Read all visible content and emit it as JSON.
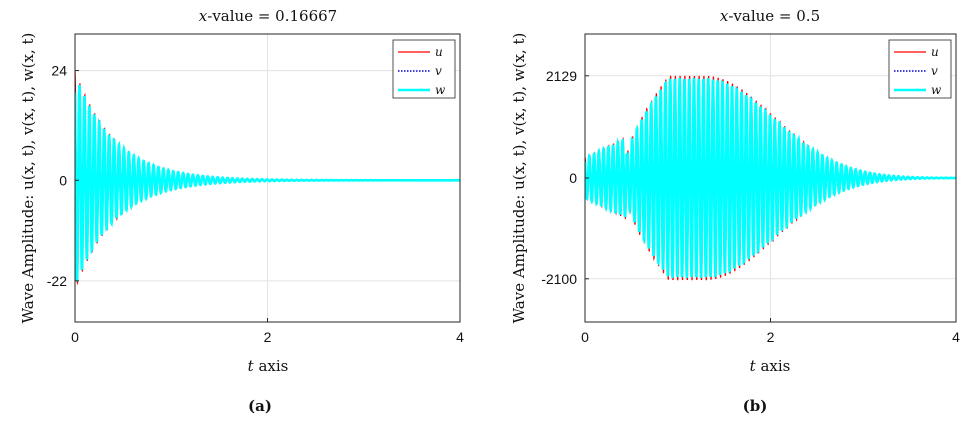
{
  "colors": {
    "u": "#ff0000",
    "v": "#0000cc",
    "w": "#00ffff",
    "grid": "#e3e3e3"
  },
  "chart_data": [
    {
      "type": "line",
      "panel_label": "(a)",
      "title_prefix": "x",
      "title_rest": "-value = 0.16667",
      "ylabel": "Wave Amplitude: u(x, t), v(x, t), w(x, t)",
      "xlabel_var": "t",
      "xlabel_rest": " axis",
      "xlim": [
        0,
        4
      ],
      "ylim": [
        -31,
        32
      ],
      "xticks": [
        0,
        2,
        4
      ],
      "xtick_labels": [
        "0",
        "2",
        "4"
      ],
      "yticks": [
        -22,
        0,
        24
      ],
      "ytick_labels": [
        "-22",
        "0",
        "24"
      ],
      "grid": true,
      "legend_position": "top-right",
      "legend": [
        "u",
        "v",
        "w"
      ],
      "envelope": {
        "shape": "decay",
        "peak": 24,
        "decay_rate": 2.4,
        "cycles_per_unit": 19.5
      },
      "series": [
        {
          "name": "u",
          "style": "solid-thin"
        },
        {
          "name": "v",
          "style": "dotted"
        },
        {
          "name": "w",
          "style": "solid-thick"
        }
      ]
    },
    {
      "type": "line",
      "panel_label": "(b)",
      "title_prefix": "x",
      "title_rest": "-value = 0.5",
      "ylabel": "Wave Amplitude: u(x, t), v(x, t), w(x, t)",
      "xlabel_var": "t",
      "xlabel_rest": " axis",
      "xlim": [
        0,
        4
      ],
      "ylim": [
        -3000,
        3000
      ],
      "xticks": [
        0,
        2,
        4
      ],
      "xtick_labels": [
        "0",
        "2",
        "4"
      ],
      "yticks": [
        -2100,
        0,
        2129
      ],
      "ytick_labels": [
        "-2100",
        "0",
        "2129"
      ],
      "grid": true,
      "legend_position": "top-right",
      "legend": [
        "u",
        "v",
        "w"
      ],
      "envelope": {
        "shape": "grow-decay",
        "peak": 2129,
        "peak_t": 1.2,
        "cycles_per_unit": 19.5
      },
      "series": [
        {
          "name": "u",
          "style": "solid-thin"
        },
        {
          "name": "v",
          "style": "dotted"
        },
        {
          "name": "w",
          "style": "solid-thick"
        }
      ]
    }
  ]
}
